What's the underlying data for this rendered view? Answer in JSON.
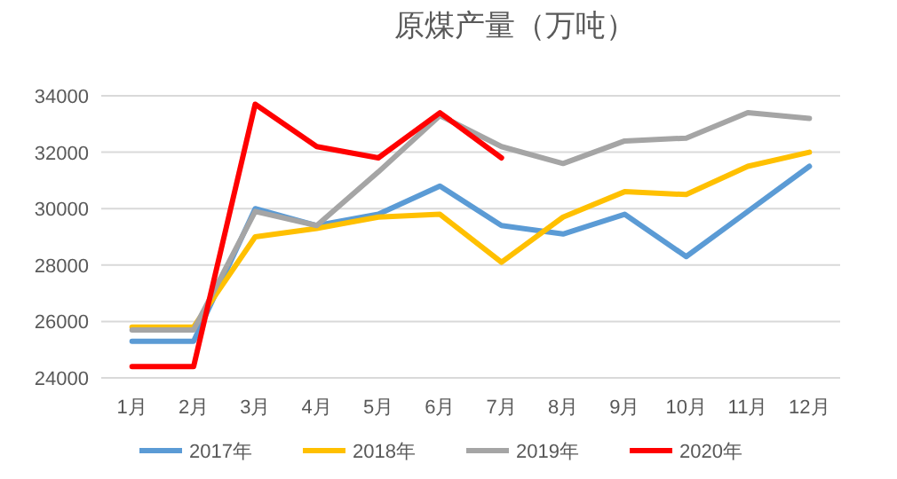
{
  "chart_data": {
    "type": "line",
    "title": "原煤产量（万吨）",
    "categories": [
      "1月",
      "2月",
      "3月",
      "4月",
      "5月",
      "6月",
      "7月",
      "8月",
      "9月",
      "10月",
      "11月",
      "12月"
    ],
    "series": [
      {
        "name": "2017年",
        "color": "#5b9bd5",
        "values": [
          25300,
          25300,
          30000,
          29400,
          29800,
          30800,
          29400,
          29100,
          29800,
          28300,
          29900,
          31500
        ]
      },
      {
        "name": "2018年",
        "color": "#ffc000",
        "values": [
          25800,
          25800,
          29000,
          29300,
          29700,
          29800,
          28100,
          29700,
          30600,
          30500,
          31500,
          32000
        ]
      },
      {
        "name": "2019年",
        "color": "#a5a5a5",
        "values": [
          25700,
          25700,
          29900,
          29400,
          31300,
          33300,
          32200,
          31600,
          32400,
          32500,
          33400,
          33200
        ]
      },
      {
        "name": "2020年",
        "color": "#ff0000",
        "values": [
          24400,
          24400,
          33700,
          32200,
          31800,
          33400,
          31800,
          null,
          null,
          null,
          null,
          null
        ]
      }
    ],
    "ylim": [
      24000,
      34000
    ],
    "yticks": [
      24000,
      26000,
      28000,
      30000,
      32000,
      34000
    ],
    "grid": "y",
    "legend": "bottom"
  }
}
